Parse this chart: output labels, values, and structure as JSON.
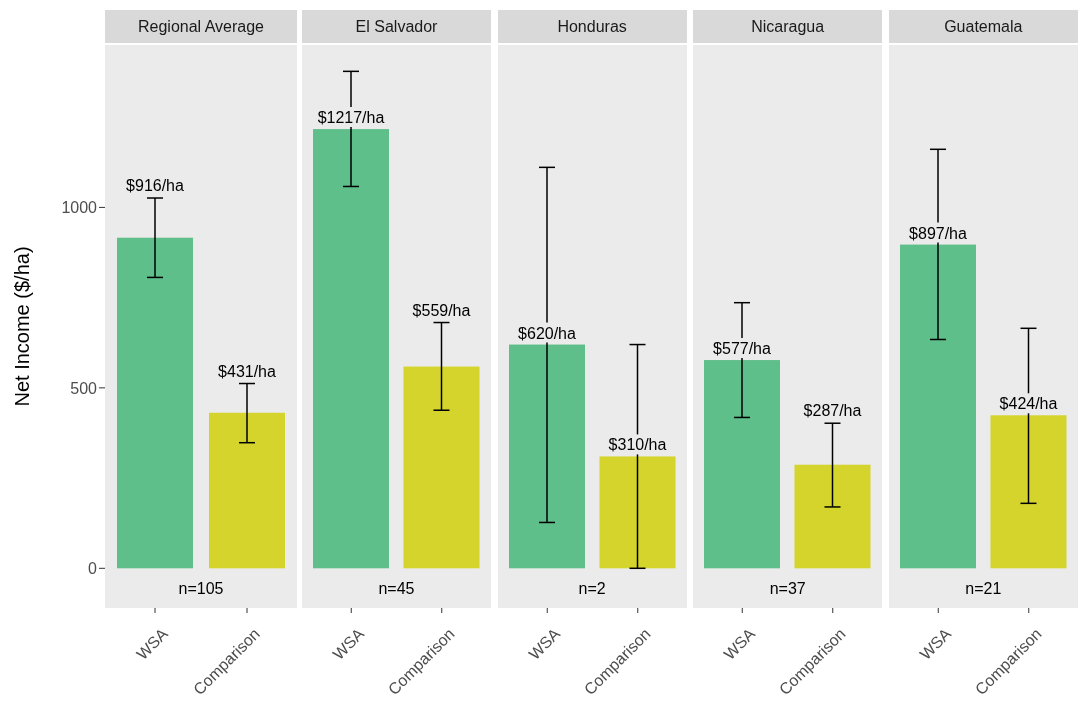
{
  "chart_data": [
    {
      "type": "bar",
      "title": "Regional Average",
      "ylabel": "Net Income ($/ha)",
      "categories": [
        "WSA",
        "Comparison"
      ],
      "values": [
        916,
        431
      ],
      "colors": [
        "#5fbf8a",
        "#d4d42c"
      ],
      "errors": [
        [
          806,
          1026
        ],
        [
          348,
          512
        ]
      ],
      "value_labels": [
        "$916/ha",
        "$431/ha"
      ],
      "annotations": [
        "n=105"
      ],
      "ylim": [
        -110,
        1450
      ],
      "yticks": [
        0,
        500,
        1000
      ]
    },
    {
      "type": "bar",
      "title": "El Salvador",
      "categories": [
        "WSA",
        "Comparison"
      ],
      "values": [
        1217,
        559
      ],
      "colors": [
        "#5fbf8a",
        "#d4d42c"
      ],
      "errors": [
        [
          1058,
          1377
        ],
        [
          438,
          681
        ]
      ],
      "value_labels": [
        "$1217/ha",
        "$559/ha"
      ],
      "annotations": [
        "n=45"
      ],
      "ylim": [
        -110,
        1450
      ],
      "yticks": [
        0,
        500,
        1000
      ],
      "tick_labels": "x"
    },
    {
      "type": "bar",
      "title": "Honduras",
      "categories": [
        "WSA",
        "Comparison"
      ],
      "values": [
        620,
        310
      ],
      "colors": [
        "#5fbf8a",
        "#d4d42c"
      ],
      "errors": [
        [
          127,
          1111
        ],
        [
          0,
          620
        ]
      ],
      "value_labels": [
        "$620/ha",
        "$310/ha"
      ],
      "annotations": [
        "n=2"
      ],
      "ylim": [
        -110,
        1450
      ],
      "yticks": [
        0,
        500,
        1000
      ],
      "tick_labels": "x"
    },
    {
      "type": "bar",
      "title": "Nicaragua",
      "categories": [
        "WSA",
        "Comparison"
      ],
      "values": [
        577,
        287
      ],
      "colors": [
        "#5fbf8a",
        "#d4d42c"
      ],
      "errors": [
        [
          418,
          736
        ],
        [
          170,
          402
        ]
      ],
      "value_labels": [
        "$577/ha",
        "$287/ha"
      ],
      "annotations": [
        "n=37"
      ],
      "ylim": [
        -110,
        1450
      ],
      "yticks": [
        0,
        500,
        1000
      ],
      "tick_labels": "x"
    },
    {
      "type": "bar",
      "title": "Guatemala",
      "categories": [
        "WSA",
        "Comparison"
      ],
      "values": [
        897,
        424
      ],
      "colors": [
        "#5fbf8a",
        "#d4d42c"
      ],
      "errors": [
        [
          634,
          1161
        ],
        [
          180,
          665
        ]
      ],
      "value_labels": [
        "$897/ha",
        "$424/ha"
      ],
      "annotations": [
        "n=21"
      ],
      "ylim": [
        -110,
        1450
      ],
      "yticks": [
        0,
        500,
        1000
      ],
      "tick_labels": "x"
    }
  ]
}
